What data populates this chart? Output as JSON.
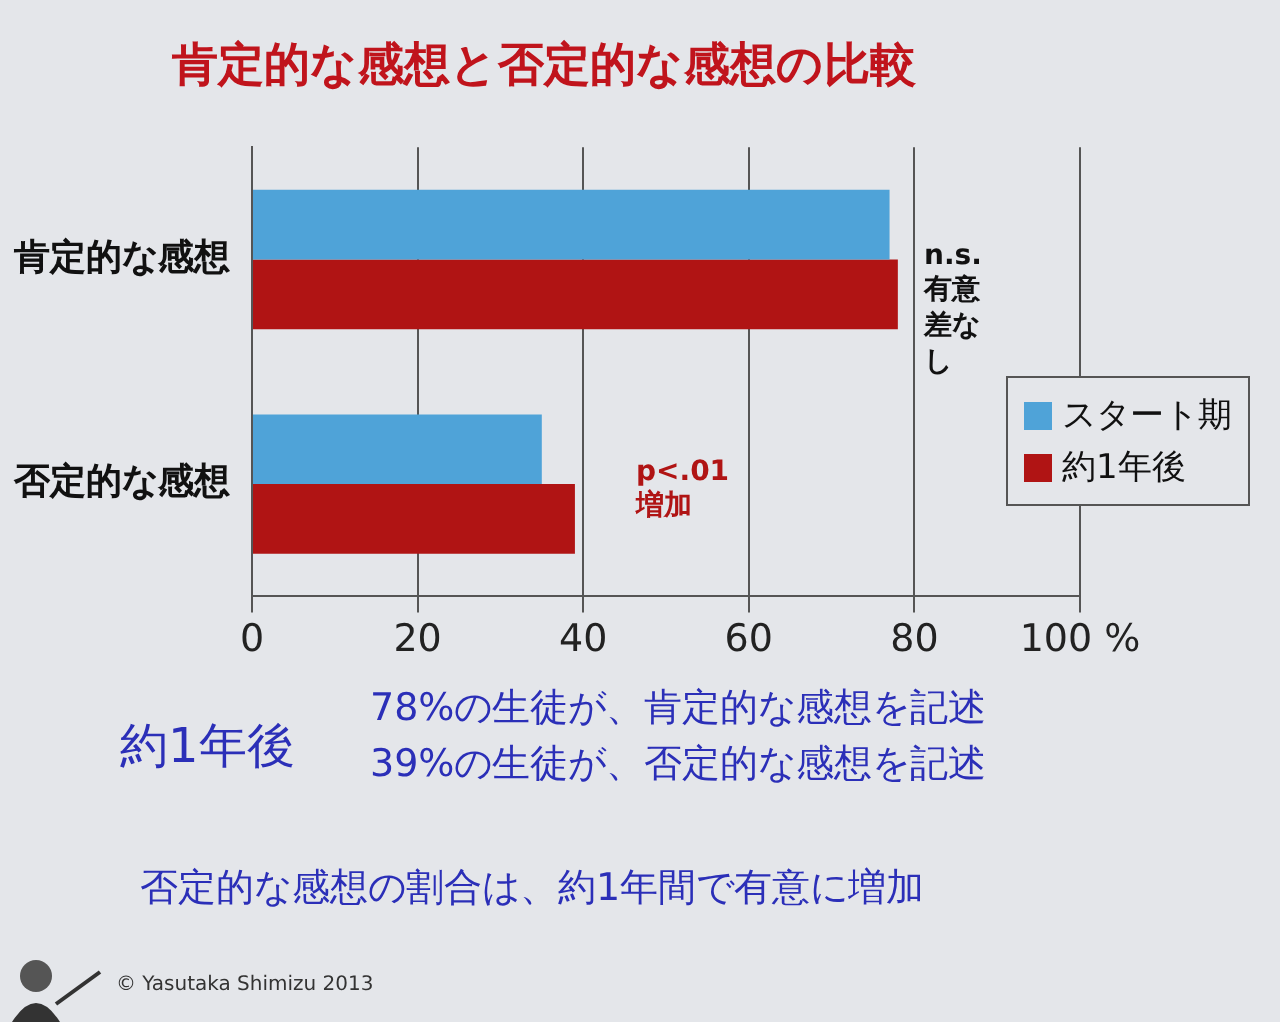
{
  "chart_data": {
    "type": "bar",
    "orientation": "horizontal",
    "title": "肯定的な感想と否定的な感想の比較",
    "categories": [
      "肯定的な感想",
      "否定的な感想"
    ],
    "series": [
      {
        "name": "スタート期",
        "color": "#4fa3d8",
        "values": [
          77,
          35
        ]
      },
      {
        "name": "約1年後",
        "color": "#b01414",
        "values": [
          78,
          39
        ]
      }
    ],
    "xlim": [
      0,
      100
    ],
    "xticks": [
      0,
      20,
      40,
      60,
      80,
      {
        "value": 100,
        "label": "100 %"
      }
    ],
    "grid": "x",
    "legend": "right",
    "annotations": [
      "n.s. 有意差なし",
      "p<.01 増加",
      "約1年後",
      "78%の生徒が、肯定的な感想を記述",
      "39%の生徒が、否定的な感想を記述",
      "否定的な感想の割合は、約1年間で有意に増加",
      "© Yasutaka Shimizu 2013"
    ]
  }
}
